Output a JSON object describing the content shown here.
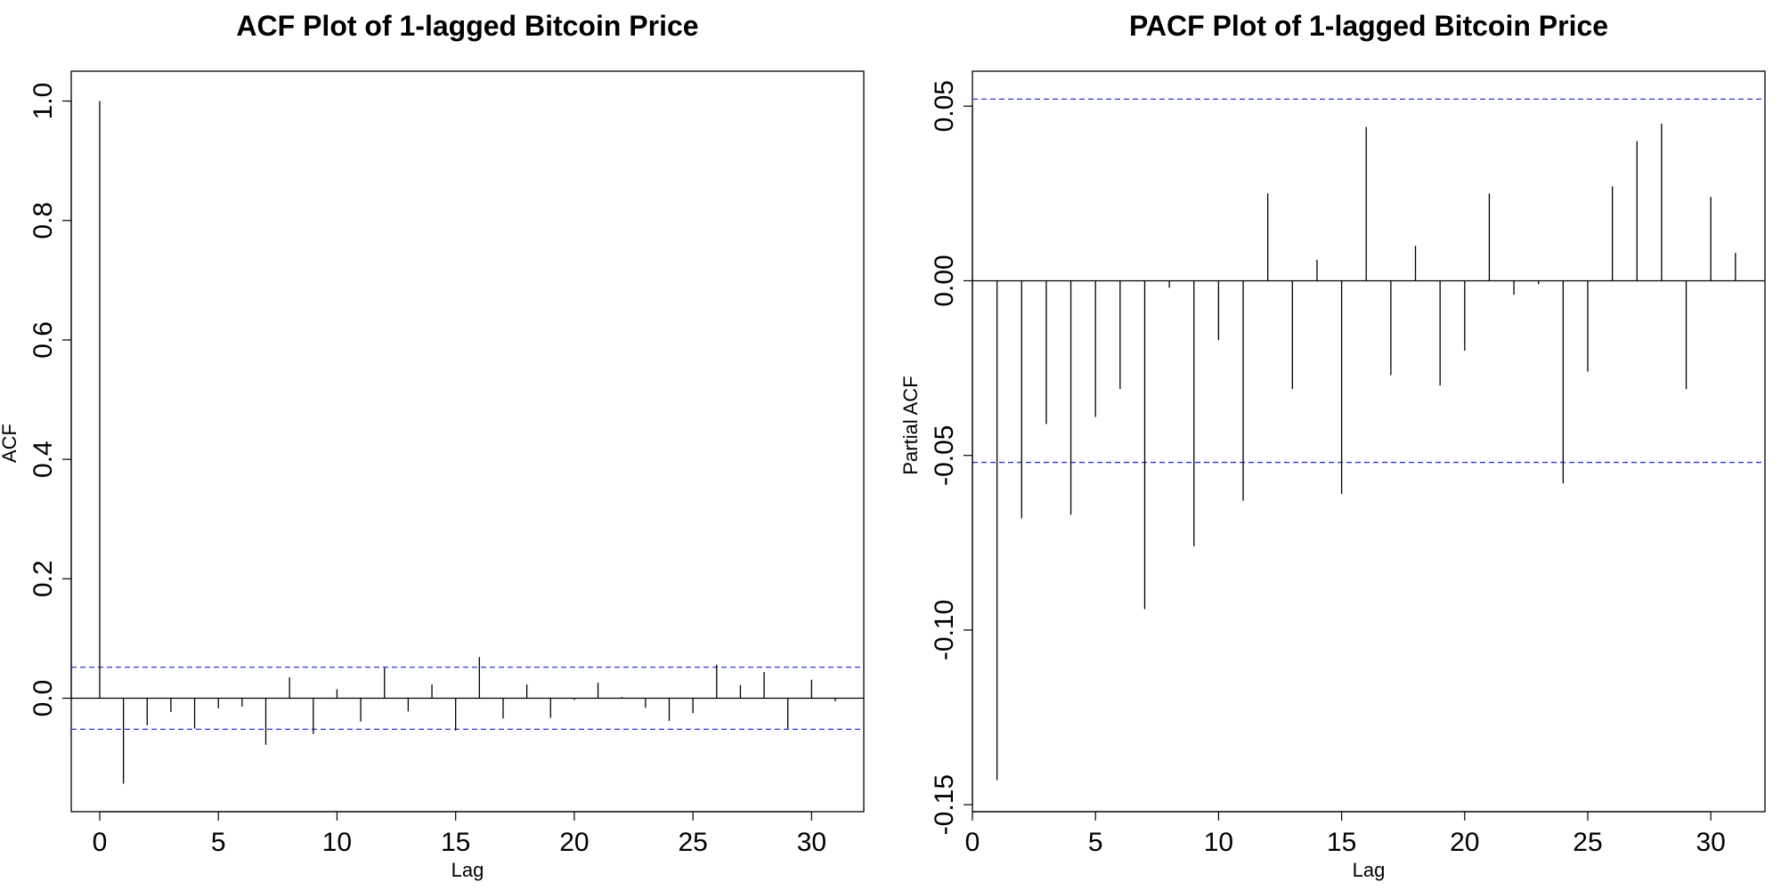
{
  "chart_data": [
    {
      "type": "bar",
      "title": "ACF Plot of 1-lagged Bitcoin Price",
      "xlabel": "Lag",
      "ylabel": "ACF",
      "xlim": [
        -1.2,
        32.2
      ],
      "ylim": [
        -0.19,
        1.05
      ],
      "xticks": [
        0,
        5,
        10,
        15,
        20,
        25,
        30
      ],
      "yticks": [
        0.0,
        0.2,
        0.4,
        0.6,
        0.8,
        1.0
      ],
      "ytick_labels": [
        "0.0",
        "0.2",
        "0.4",
        "0.6",
        "0.8",
        "1.0"
      ],
      "confidence_bound": 0.052,
      "zero_line": true,
      "lags": [
        0,
        1,
        2,
        3,
        4,
        5,
        6,
        7,
        8,
        9,
        10,
        11,
        12,
        13,
        14,
        15,
        16,
        17,
        18,
        19,
        20,
        21,
        22,
        23,
        24,
        25,
        26,
        27,
        28,
        29,
        30,
        31
      ],
      "values": [
        1.0,
        -0.143,
        -0.045,
        -0.023,
        -0.051,
        -0.017,
        -0.014,
        -0.078,
        0.035,
        -0.06,
        0.015,
        -0.039,
        0.051,
        -0.022,
        0.023,
        -0.054,
        0.069,
        -0.034,
        0.023,
        -0.033,
        -0.003,
        0.026,
        0.002,
        -0.016,
        -0.038,
        -0.025,
        0.056,
        0.022,
        0.044,
        -0.051,
        0.031,
        -0.005
      ],
      "colors": {
        "bars": "#000000",
        "confidence": "#3333dd",
        "frame": "#000000"
      }
    },
    {
      "type": "bar",
      "title": "PACF Plot of 1-lagged Bitcoin Price",
      "xlabel": "Lag",
      "ylabel": "Partial ACF",
      "xlim": [
        0,
        32.2
      ],
      "ylim": [
        -0.152,
        0.06
      ],
      "xticks": [
        0,
        5,
        10,
        15,
        20,
        25,
        30
      ],
      "yticks": [
        -0.15,
        -0.1,
        -0.05,
        0.0,
        0.05
      ],
      "ytick_labels": [
        "-0.15",
        "-0.10",
        "-0.05",
        "0.00",
        "0.05"
      ],
      "confidence_bound": 0.052,
      "zero_line": true,
      "lags": [
        1,
        2,
        3,
        4,
        5,
        6,
        7,
        8,
        9,
        10,
        11,
        12,
        13,
        14,
        15,
        16,
        17,
        18,
        19,
        20,
        21,
        22,
        23,
        24,
        25,
        26,
        27,
        28,
        29,
        30,
        31
      ],
      "values": [
        -0.143,
        -0.068,
        -0.041,
        -0.067,
        -0.039,
        -0.031,
        -0.094,
        -0.002,
        -0.076,
        -0.017,
        -0.063,
        0.025,
        -0.031,
        0.006,
        -0.061,
        0.044,
        -0.027,
        0.01,
        -0.03,
        -0.02,
        0.025,
        -0.004,
        -0.001,
        -0.058,
        -0.026,
        0.027,
        0.04,
        0.045,
        -0.031,
        0.024,
        0.008
      ],
      "colors": {
        "bars": "#000000",
        "confidence": "#3333dd",
        "frame": "#000000"
      }
    }
  ]
}
